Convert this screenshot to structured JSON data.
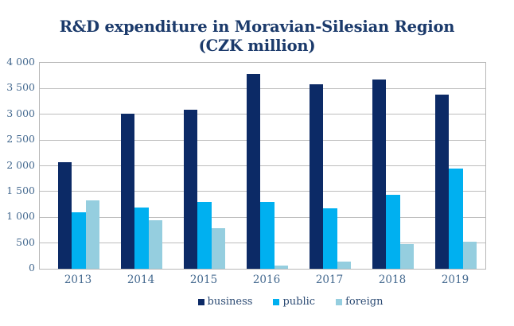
{
  "title": {
    "line1": "R&D expenditure in Moravian-Silesian Region",
    "line2": "(CZK million)"
  },
  "chart_data": {
    "type": "bar",
    "title": "R&D expenditure in Moravian-Silesian Region (CZK million)",
    "categories": [
      "2013",
      "2014",
      "2015",
      "2016",
      "2017",
      "2018",
      "2019"
    ],
    "series": [
      {
        "name": "business",
        "color": "#0c2a66",
        "values": [
          2070,
          3010,
          3090,
          3790,
          3590,
          3670,
          3390
        ]
      },
      {
        "name": "public",
        "color": "#00b0f0",
        "values": [
          1090,
          1190,
          1290,
          1290,
          1180,
          1430,
          1950
        ]
      },
      {
        "name": "foreign",
        "color": "#95cedf",
        "values": [
          1330,
          940,
          790,
          60,
          140,
          480,
          520
        ]
      }
    ],
    "xlabel": "",
    "ylabel": "",
    "ylim": [
      0,
      4000
    ],
    "ytick_interval": 500,
    "ytick_labels": [
      "0",
      "500",
      "1 000",
      "1 500",
      "2 000",
      "2 500",
      "3 000",
      "3 500",
      "4 000"
    ],
    "grid": true,
    "legend_position": "bottom"
  },
  "style": {
    "title_color": "#1b3a6b",
    "axis_label_color": "#44698f",
    "legend_text_color": "#2b4a73",
    "grid_color": "#bdbdbd",
    "plot_border_color": "#b7b7b7"
  }
}
